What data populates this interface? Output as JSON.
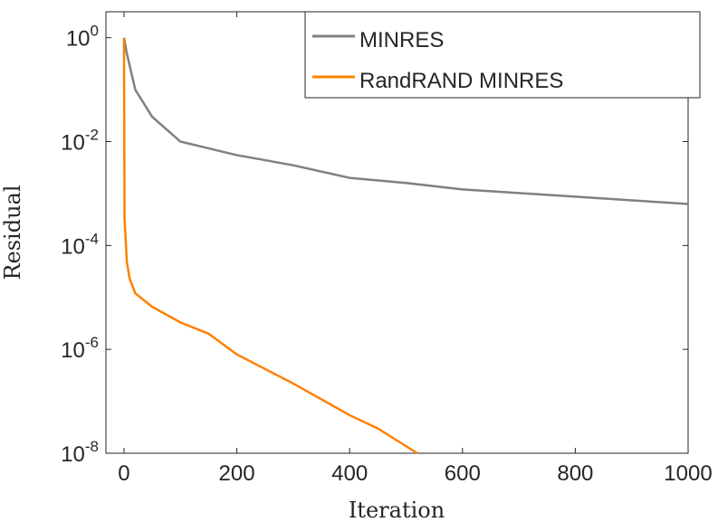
{
  "chart_data": {
    "type": "line",
    "log_y": true,
    "x_label": "Iteration",
    "y_label": "Residual",
    "xlim": [
      -32,
      1000
    ],
    "xticks": [
      0,
      200,
      400,
      600,
      800,
      1000
    ],
    "ylim": [
      1e-08,
      3.16
    ],
    "yticks": [
      {
        "value": 1,
        "label": "10^0"
      },
      {
        "value": 0.01,
        "label": "10^-2"
      },
      {
        "value": 0.0001,
        "label": "10^-4"
      },
      {
        "value": 1e-06,
        "label": "10^-6"
      },
      {
        "value": 1e-08,
        "label": "10^-8"
      }
    ],
    "legend": "top-right",
    "series": [
      {
        "name": "MINRES",
        "color": "#808080",
        "x": [
          0,
          5,
          20,
          50,
          100,
          200,
          300,
          400,
          500,
          600,
          800,
          1000
        ],
        "values": [
          1,
          0.5,
          0.1,
          0.03,
          0.01,
          0.0055,
          0.0035,
          0.002,
          0.0016,
          0.0012,
          0.00087,
          0.00063
        ]
      },
      {
        "name": "RandRAND MINRES",
        "color": "#ff8000",
        "x": [
          0,
          1,
          5,
          10,
          20,
          50,
          100,
          150,
          200,
          300,
          400,
          450,
          520
        ],
        "values": [
          1,
          0.00033,
          4.9e-05,
          2.3e-05,
          1.2e-05,
          6.6e-06,
          3.3e-06,
          2e-06,
          8e-07,
          2.2e-07,
          5.4e-08,
          3e-08,
          1e-08
        ]
      }
    ]
  }
}
